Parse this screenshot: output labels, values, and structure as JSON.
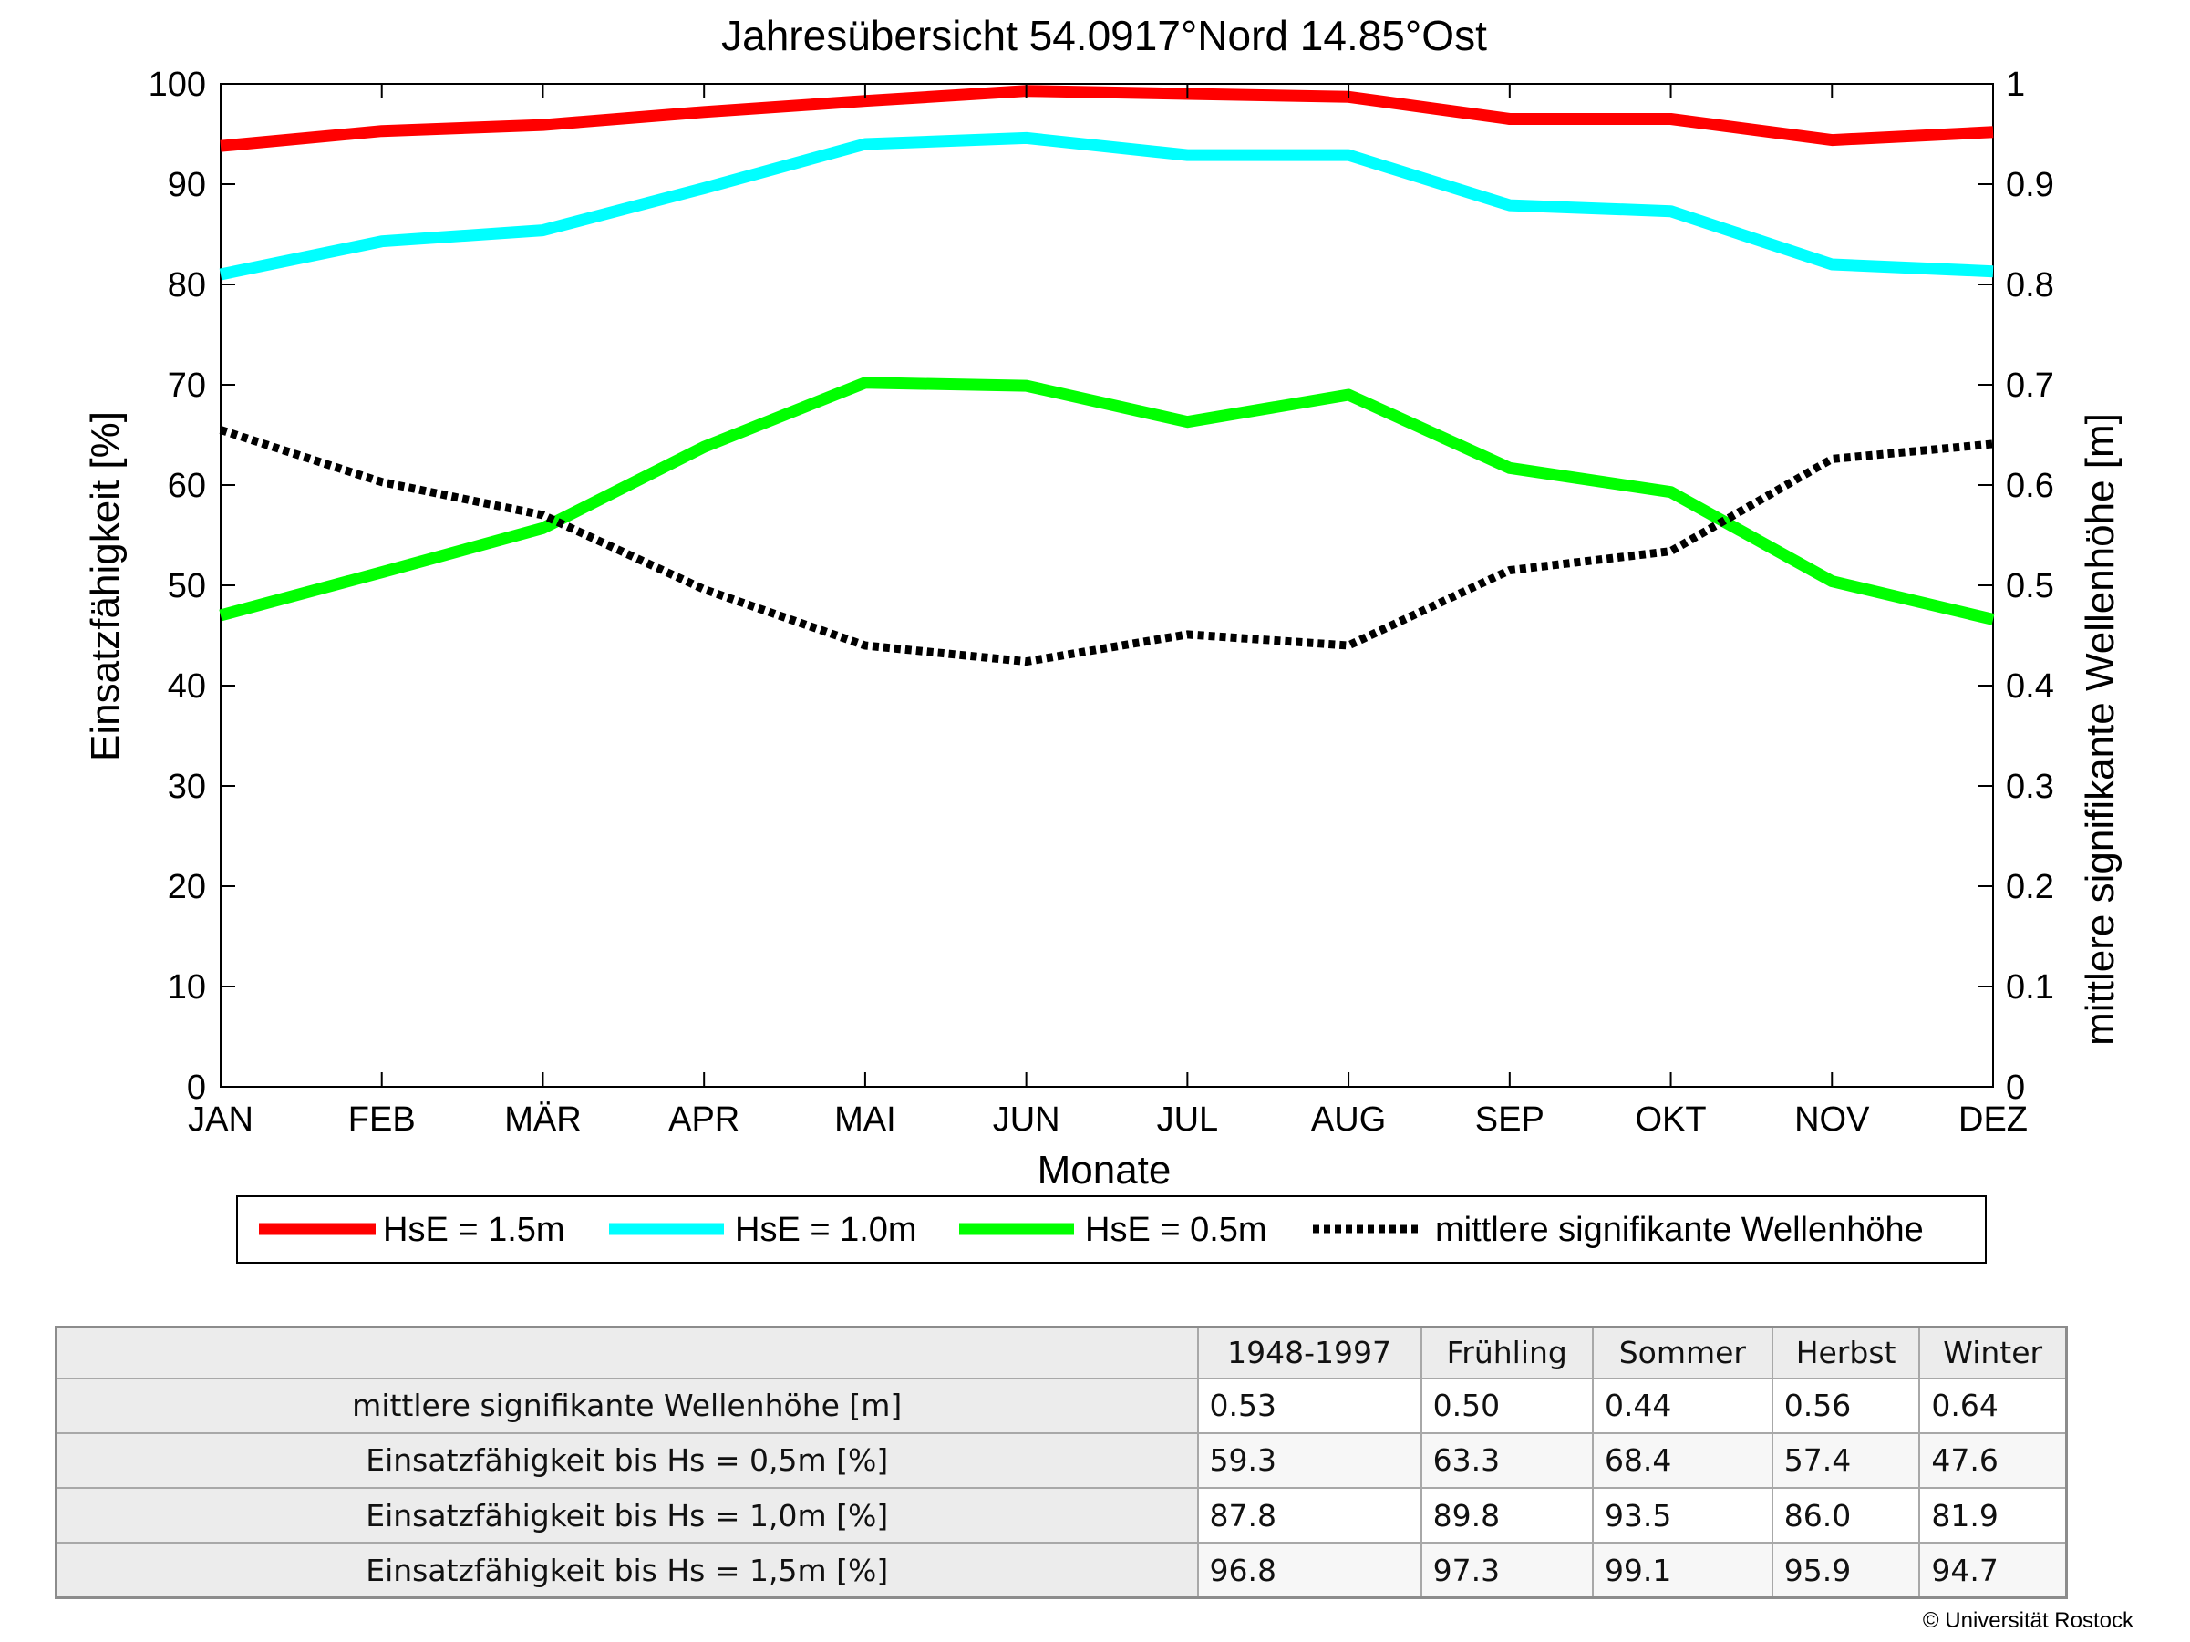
{
  "chart_data": {
    "type": "line",
    "title": "Jahresübersicht  54.0917°Nord  14.85°Ost",
    "xlabel": "Monate",
    "ylabel": "Einsatzfähigkeit [%]",
    "y2label": "mittlere signifikante Wellenhöhe [m]",
    "categories": [
      "JAN",
      "FEB",
      "MÄR",
      "APR",
      "MAI",
      "JUN",
      "JUL",
      "AUG",
      "SEP",
      "OKT",
      "NOV",
      "DEZ"
    ],
    "ylim": [
      0,
      100
    ],
    "y2lim": [
      0,
      1
    ],
    "yticks": [
      0,
      10,
      20,
      30,
      40,
      50,
      60,
      70,
      80,
      90,
      100
    ],
    "y2ticks": [
      "0",
      "0.1",
      "0.2",
      "0.3",
      "0.4",
      "0.5",
      "0.6",
      "0.7",
      "0.8",
      "0.9",
      "1"
    ],
    "grid": false,
    "legend_position": "below-plot",
    "series": [
      {
        "name": "HsE = 1.5m",
        "axis": "left",
        "color": "#ff0000",
        "style": "solid",
        "values": [
          93.8,
          95.3,
          95.9,
          97.2,
          98.3,
          99.3,
          99.0,
          98.7,
          96.5,
          96.5,
          94.4,
          95.2
        ]
      },
      {
        "name": "HsE = 1.0m",
        "axis": "left",
        "color": "#00ffff",
        "style": "solid",
        "values": [
          81.0,
          84.3,
          85.4,
          89.6,
          94.0,
          94.6,
          92.9,
          92.9,
          87.9,
          87.3,
          82.0,
          81.3
        ]
      },
      {
        "name": "HsE = 0.5m",
        "axis": "left",
        "color": "#00ff00",
        "style": "solid",
        "values": [
          47.0,
          51.3,
          55.7,
          63.8,
          70.2,
          69.9,
          66.3,
          69.0,
          61.7,
          59.3,
          50.4,
          46.6
        ]
      },
      {
        "name": "mittlere signifikante Wellenhöhe",
        "axis": "right",
        "color": "#000000",
        "style": "dotted",
        "values": [
          0.655,
          0.603,
          0.57,
          0.496,
          0.44,
          0.424,
          0.451,
          0.44,
          0.515,
          0.534,
          0.626,
          0.641
        ]
      }
    ]
  },
  "table": {
    "columns": [
      "1948-1997",
      "Frühling",
      "Sommer",
      "Herbst",
      "Winter"
    ],
    "rows": [
      {
        "label": "mittlere signifikante Wellenhöhe [m]",
        "values": [
          "0.53",
          "0.50",
          "0.44",
          "0.56",
          "0.64"
        ]
      },
      {
        "label": "Einsatzfähigkeit bis Hs = 0,5m [%]",
        "values": [
          "59.3",
          "63.3",
          "68.4",
          "57.4",
          "47.6"
        ]
      },
      {
        "label": "Einsatzfähigkeit bis Hs = 1,0m [%]",
        "values": [
          "87.8",
          "89.8",
          "93.5",
          "86.0",
          "81.9"
        ]
      },
      {
        "label": "Einsatzfähigkeit bis Hs = 1,5m [%]",
        "values": [
          "96.8",
          "97.3",
          "99.1",
          "95.9",
          "94.7"
        ]
      }
    ]
  },
  "copyright": "© Universität Rostock"
}
